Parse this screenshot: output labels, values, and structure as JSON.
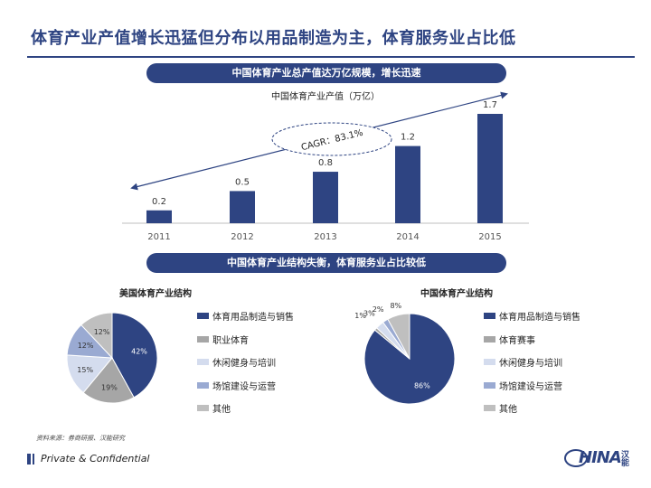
{
  "title": "体育产业产值增长迅猛但分布以用品制造为主，体育服务业占比低",
  "banner_top": "中国体育产业总产值达万亿规模，增长迅速",
  "bar_subtitle": "中国体育产业产值（万亿）",
  "cagr_label": "CAGR：83.1%",
  "banner_bottom": "中国体育产业结构失衡，体育服务业占比较低",
  "pie_us_title": "美国体育产业结构",
  "pie_cn_title": "中国体育产业结构",
  "legend_us": [
    "体育用品制造与销售",
    "职业体育",
    "休闲健身与培训",
    "场馆建设与运营",
    "其他"
  ],
  "legend_cn": [
    "体育用品制造与销售",
    "体育赛事",
    "休闲健身与培训",
    "场馆建设与运营",
    "其他"
  ],
  "source": "资料来源：券商研报、汉能研究",
  "footer": "Private & Confidential",
  "logo_text": "HINA",
  "logo_cn": "汉能",
  "colors": {
    "primary": "#2e4482",
    "grey": "#a6a6a6",
    "light_blue": "#d4dcee",
    "mid_blue": "#9aaad2",
    "light_grey": "#bfbfbf"
  },
  "chart_data": [
    {
      "type": "bar",
      "title": "中国体育产业产值（万亿）",
      "categories": [
        "2011",
        "2012",
        "2013",
        "2014",
        "2015"
      ],
      "values": [
        0.2,
        0.5,
        0.8,
        1.2,
        1.7
      ],
      "value_labels": [
        "0.2",
        "0.5",
        "0.8",
        "1.2",
        "1.7"
      ],
      "annotation": "CAGR：83.1%",
      "ylim": [
        0,
        1.7
      ]
    },
    {
      "type": "pie",
      "title": "美国体育产业结构",
      "labels": [
        "体育用品制造与销售",
        "职业体育",
        "休闲健身与培训",
        "场馆建设与运营",
        "其他"
      ],
      "values": [
        42,
        19,
        15,
        12,
        12
      ],
      "value_labels": [
        "42%",
        "19%",
        "15%",
        "12%",
        "12%"
      ]
    },
    {
      "type": "pie",
      "title": "中国体育产业结构",
      "labels": [
        "体育用品制造与销售",
        "体育赛事",
        "休闲健身与培训",
        "场馆建设与运营",
        "其他"
      ],
      "values": [
        86,
        1,
        3,
        2,
        8
      ],
      "value_labels": [
        "86%",
        "1%",
        "3%",
        "2%",
        "8%"
      ]
    }
  ]
}
